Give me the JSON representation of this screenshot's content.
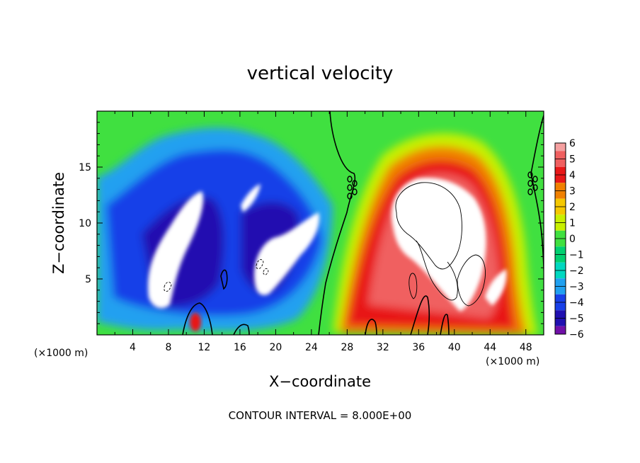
{
  "chart_data": {
    "type": "heatmap",
    "title": "vertical velocity",
    "xlabel": "X−coordinate",
    "ylabel": "Z−coordinate",
    "x_units_left": "(×1000 m)",
    "x_units_right": "(×1000 m)",
    "xlim": [
      0,
      50
    ],
    "ylim": [
      0,
      20
    ],
    "x_ticks": [
      4,
      8,
      12,
      16,
      20,
      24,
      28,
      32,
      36,
      40,
      44,
      48
    ],
    "y_ticks": [
      5,
      10,
      15
    ],
    "colorbar": {
      "levels": [
        6,
        5,
        4,
        3,
        2,
        1,
        0,
        -1,
        -2,
        -3,
        -4,
        -5,
        -6
      ],
      "labels": [
        "6",
        "5",
        "4",
        "3",
        "2",
        "1",
        "0",
        "−1",
        "−2",
        "−3",
        "−4",
        "−5",
        "−6"
      ],
      "colors": [
        "#f5a0a0",
        "#f06060",
        "#e81818",
        "#f08000",
        "#f5c800",
        "#c8f000",
        "#40e040",
        "#00d070",
        "#00d8c0",
        "#20a0f0",
        "#1840e8",
        "#2010b0",
        "#7010a8"
      ]
    },
    "regions": [
      {
        "kind": "updraft",
        "x_range": [
          28,
          50
        ],
        "z_range": [
          0,
          18
        ],
        "peak": "> 6"
      },
      {
        "kind": "downdraft",
        "x_range": [
          1,
          26
        ],
        "z_range": [
          0,
          17
        ],
        "peak": "< -6"
      }
    ],
    "footer": "CONTOUR INTERVAL = 8.000E+00"
  }
}
